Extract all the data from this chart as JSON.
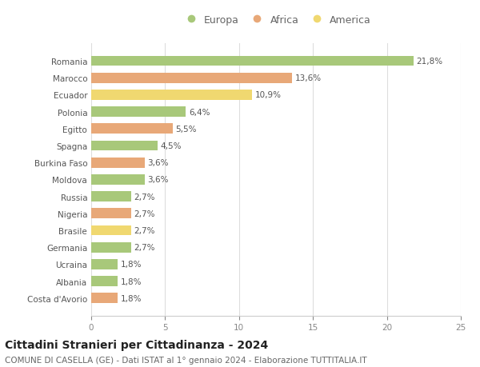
{
  "categories": [
    "Romania",
    "Marocco",
    "Ecuador",
    "Polonia",
    "Egitto",
    "Spagna",
    "Burkina Faso",
    "Moldova",
    "Russia",
    "Nigeria",
    "Brasile",
    "Germania",
    "Ucraina",
    "Albania",
    "Costa d'Avorio"
  ],
  "values": [
    21.8,
    13.6,
    10.9,
    6.4,
    5.5,
    4.5,
    3.6,
    3.6,
    2.7,
    2.7,
    2.7,
    2.7,
    1.8,
    1.8,
    1.8
  ],
  "labels": [
    "21,8%",
    "13,6%",
    "10,9%",
    "6,4%",
    "5,5%",
    "4,5%",
    "3,6%",
    "3,6%",
    "2,7%",
    "2,7%",
    "2,7%",
    "2,7%",
    "1,8%",
    "1,8%",
    "1,8%"
  ],
  "continents": [
    "Europa",
    "Africa",
    "America",
    "Europa",
    "Africa",
    "Europa",
    "Africa",
    "Europa",
    "Europa",
    "Africa",
    "America",
    "Europa",
    "Europa",
    "Europa",
    "Africa"
  ],
  "colors": {
    "Europa": "#a8c87a",
    "Africa": "#e8a878",
    "America": "#f0d870"
  },
  "legend": [
    "Europa",
    "Africa",
    "America"
  ],
  "legend_colors": [
    "#a8c87a",
    "#e8a878",
    "#f0d870"
  ],
  "title": "Cittadini Stranieri per Cittadinanza - 2024",
  "subtitle": "COMUNE DI CASELLA (GE) - Dati ISTAT al 1° gennaio 2024 - Elaborazione TUTTITALIA.IT",
  "xlim": [
    0,
    25
  ],
  "xticks": [
    0,
    5,
    10,
    15,
    20,
    25
  ],
  "background_color": "#ffffff",
  "grid_color": "#dddddd",
  "bar_height": 0.6,
  "label_fontsize": 7.5,
  "title_fontsize": 10,
  "subtitle_fontsize": 7.5,
  "tick_fontsize": 7.5,
  "legend_fontsize": 9,
  "cat_fontsize": 7.5
}
